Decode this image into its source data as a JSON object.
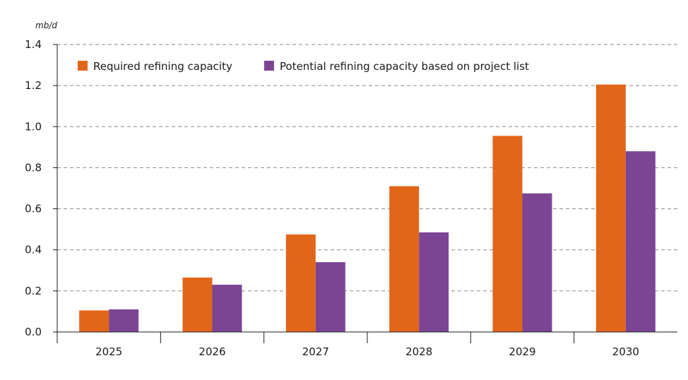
{
  "chart_data": {
    "type": "bar",
    "title": "",
    "unit_label": "mb/d",
    "xlabel": "",
    "ylabel": "",
    "categories": [
      "2025",
      "2026",
      "2027",
      "2028",
      "2029",
      "2030"
    ],
    "series": [
      {
        "name": "Required refining capacity",
        "color": "#E2661A",
        "values": [
          0.105,
          0.265,
          0.475,
          0.71,
          0.955,
          1.205
        ]
      },
      {
        "name": "Potential refining capacity based on project list",
        "color": "#7B4594",
        "values": [
          0.11,
          0.23,
          0.34,
          0.485,
          0.675,
          0.88
        ]
      }
    ],
    "ylim": [
      0,
      1.4
    ],
    "yticks": [
      "0.0",
      "0.2",
      "0.4",
      "0.6",
      "0.8",
      "1.0",
      "1.2",
      "1.4"
    ],
    "grid": true,
    "legend_position": "top-left"
  }
}
